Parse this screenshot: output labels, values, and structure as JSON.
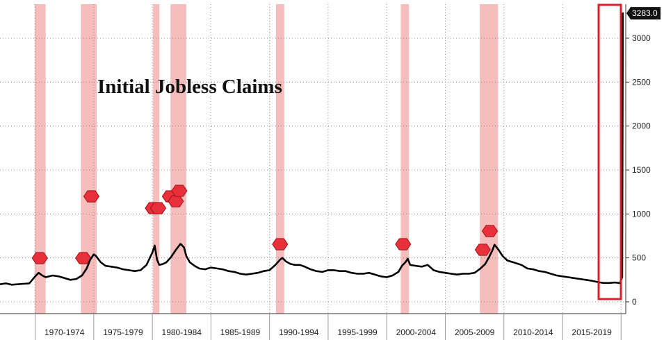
{
  "chart_data": {
    "type": "line",
    "title": "Initial Jobless Claims",
    "xlabel": "",
    "ylabel": "",
    "ylim": [
      0,
      3250
    ],
    "yticks": [
      0,
      500,
      1000,
      1500,
      2000,
      2500,
      3000
    ],
    "yticklabels": [
      "0",
      "500",
      "1000",
      "1500",
      "2000",
      "2500",
      "3000"
    ],
    "xlim": [
      1967.0,
      2020.4
    ],
    "xticklabels": [
      "1970-1974",
      "1975-1979",
      "1980-1984",
      "1985-1989",
      "1990-1994",
      "1995-1999",
      "2000-2004",
      "2005-2009",
      "2010-2014",
      "2015-2019"
    ],
    "grid": true,
    "last_value_label": "3283.0",
    "last_value": 3283.0,
    "recessions": [
      [
        1969.95,
        1970.9
      ],
      [
        1973.9,
        1975.25
      ],
      [
        1980.05,
        1980.6
      ],
      [
        1981.55,
        1982.9
      ],
      [
        1990.55,
        1991.25
      ],
      [
        2001.2,
        2001.9
      ],
      [
        2007.95,
        2009.5
      ]
    ],
    "series": [
      {
        "color": "#000000",
        "x": [
          1967.0,
          1967.5,
          1968.0,
          1968.5,
          1969.0,
          1969.5,
          1970.0,
          1970.3,
          1970.6,
          1970.9,
          1971.5,
          1972.0,
          1972.5,
          1973.0,
          1973.5,
          1974.0,
          1974.4,
          1974.7,
          1975.0,
          1975.2,
          1975.6,
          1976.0,
          1976.5,
          1977.0,
          1977.5,
          1978.0,
          1978.5,
          1979.0,
          1979.5,
          1980.0,
          1980.2,
          1980.4,
          1980.6,
          1980.9,
          1981.2,
          1981.6,
          1982.0,
          1982.4,
          1982.7,
          1982.9,
          1983.2,
          1983.6,
          1984.0,
          1984.5,
          1985.0,
          1985.5,
          1986.0,
          1986.5,
          1987.0,
          1987.5,
          1988.0,
          1988.5,
          1989.0,
          1989.5,
          1990.0,
          1990.5,
          1990.9,
          1991.1,
          1991.4,
          1991.8,
          1992.2,
          1992.6,
          1993.0,
          1993.5,
          1994.0,
          1994.5,
          1995.0,
          1995.5,
          1996.0,
          1996.5,
          1997.0,
          1997.5,
          1998.0,
          1998.5,
          1999.0,
          1999.5,
          2000.0,
          2000.5,
          2001.0,
          2001.3,
          2001.6,
          2001.8,
          2002.0,
          2002.5,
          2003.0,
          2003.5,
          2004.0,
          2004.5,
          2005.0,
          2005.5,
          2006.0,
          2006.5,
          2007.0,
          2007.5,
          2008.0,
          2008.4,
          2008.7,
          2009.0,
          2009.2,
          2009.5,
          2009.9,
          2010.3,
          2010.8,
          2011.5,
          2012.0,
          2012.5,
          2013.0,
          2013.5,
          2014.0,
          2014.5,
          2015.0,
          2015.5,
          2016.0,
          2016.5,
          2017.0,
          2017.5,
          2018.0,
          2018.5,
          2019.0,
          2019.5,
          2019.9,
          2020.1,
          2020.15,
          2020.22
        ],
        "values": [
          200,
          210,
          195,
          200,
          205,
          210,
          290,
          330,
          300,
          280,
          300,
          290,
          270,
          250,
          260,
          300,
          380,
          480,
          540,
          520,
          450,
          410,
          400,
          390,
          370,
          360,
          350,
          360,
          420,
          560,
          640,
          480,
          420,
          430,
          450,
          510,
          590,
          660,
          620,
          520,
          450,
          410,
          380,
          370,
          390,
          380,
          370,
          350,
          340,
          320,
          310,
          320,
          330,
          350,
          360,
          420,
          480,
          500,
          460,
          430,
          420,
          420,
          400,
          370,
          350,
          340,
          360,
          360,
          350,
          350,
          330,
          320,
          320,
          330,
          310,
          290,
          280,
          300,
          340,
          410,
          450,
          490,
          420,
          410,
          400,
          420,
          360,
          340,
          330,
          320,
          310,
          320,
          320,
          330,
          380,
          430,
          500,
          580,
          650,
          600,
          520,
          470,
          450,
          420,
          380,
          370,
          350,
          340,
          320,
          300,
          290,
          280,
          270,
          260,
          250,
          240,
          225,
          215,
          215,
          220,
          212,
          281,
          3283,
          3283
        ]
      }
    ]
  }
}
